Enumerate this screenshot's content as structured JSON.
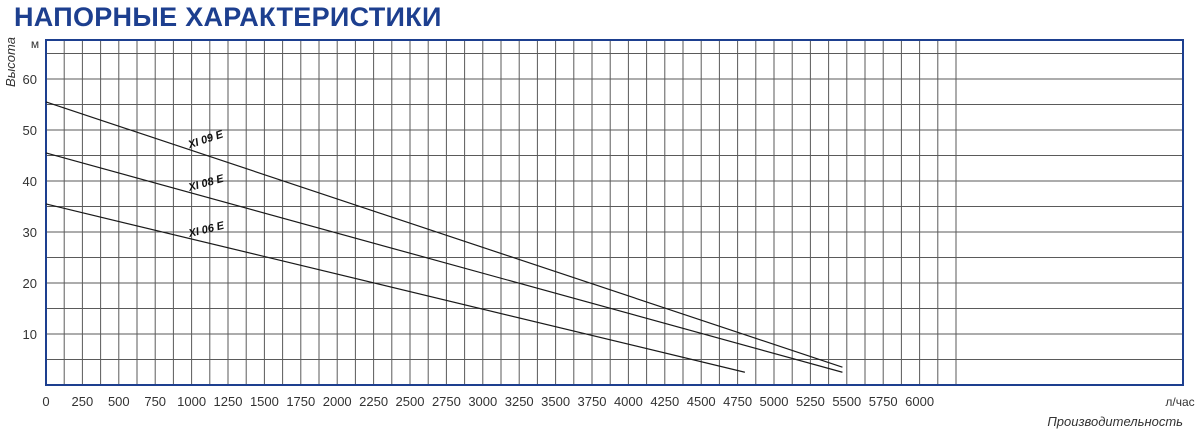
{
  "header": {
    "title": "НАПОРНЫЕ ХАРАКТЕРИСТИКИ"
  },
  "chart_data": {
    "type": "line",
    "xlabel": "Производительность",
    "xunit": "л/час",
    "ylabel": "Высота",
    "yunit": "м",
    "xlim": [
      0,
      6250
    ],
    "ylim": [
      0,
      68
    ],
    "xticks": [
      0,
      250,
      500,
      750,
      1000,
      1250,
      1500,
      1750,
      2000,
      2250,
      2500,
      2750,
      3000,
      3250,
      3500,
      3750,
      4000,
      4250,
      4500,
      4750,
      5000,
      5250,
      5500,
      5750,
      6000
    ],
    "yticks": [
      10,
      20,
      30,
      40,
      50,
      60
    ],
    "grid": true,
    "series": [
      {
        "name": "XI 09 E",
        "x": [
          0,
          5470
        ],
        "y": [
          55.5,
          3.5
        ]
      },
      {
        "name": "XI 08 E",
        "x": [
          0,
          5470
        ],
        "y": [
          45.5,
          2.5
        ]
      },
      {
        "name": "XI 06 E",
        "x": [
          0,
          4800
        ],
        "y": [
          35.5,
          2.5
        ]
      }
    ]
  }
}
